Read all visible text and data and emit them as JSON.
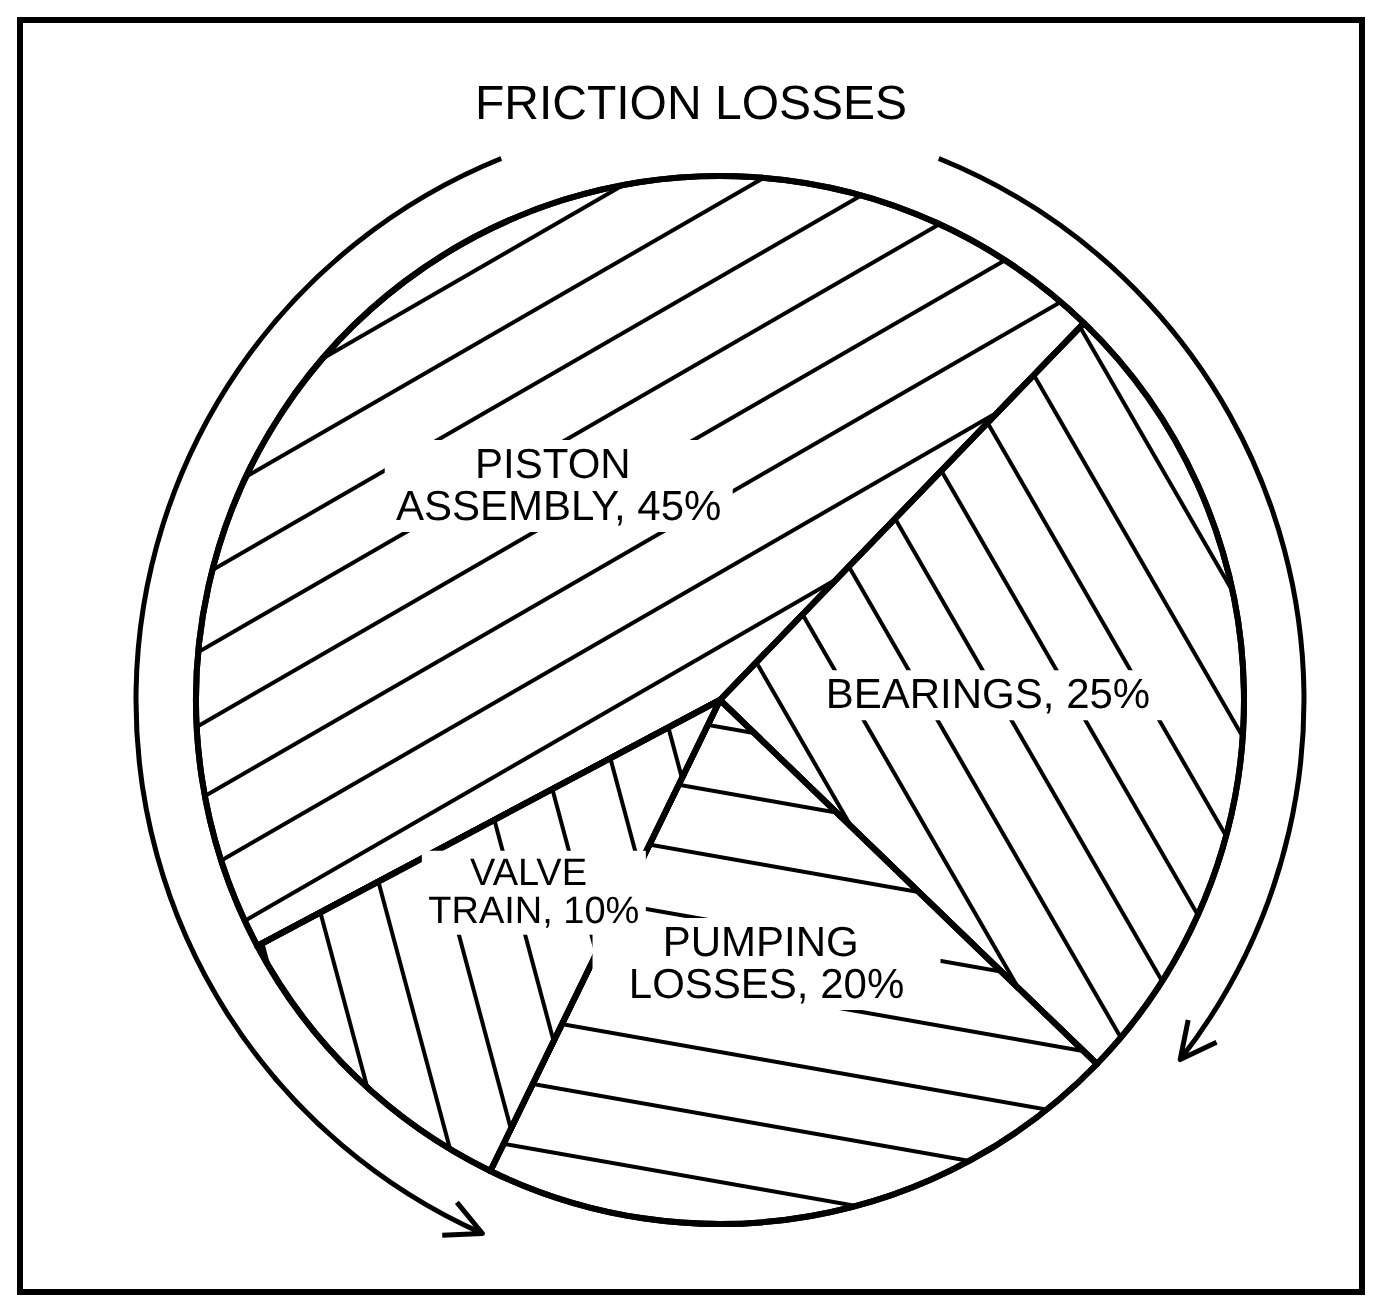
{
  "chart_data": {
    "type": "pie",
    "title": "FRICTION LOSSES",
    "categories": [
      "PISTON ASSEMBLY",
      "BEARINGS",
      "PUMPING LOSSES",
      "VALVE TRAIN"
    ],
    "values": [
      45,
      25,
      20,
      10
    ],
    "value_labels": [
      "45%",
      "25%",
      "20%",
      "10%"
    ],
    "colors": [
      "#ffffff",
      "#ffffff",
      "#ffffff",
      "#ffffff"
    ],
    "legend": false
  }
}
